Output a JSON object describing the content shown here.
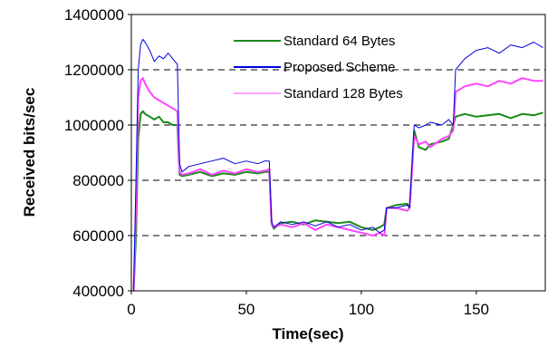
{
  "chart_data": {
    "type": "line",
    "title": "",
    "xlabel": "Time(sec)",
    "ylabel": "Received bits/sec",
    "xlim": [
      0,
      180
    ],
    "ylim": [
      400000,
      1400000
    ],
    "x_ticks": [
      "0",
      "50",
      "100",
      "150"
    ],
    "y_ticks": [
      "400000",
      "600000",
      "800000",
      "1000000",
      "1200000",
      "1400000"
    ],
    "grid": "horizontal dashed",
    "legend_position": "top-right",
    "series": [
      {
        "name": "Standard 64 Bytes",
        "color": "#1a8a1a",
        "x": [
          1,
          2,
          3,
          4,
          5,
          6,
          8,
          10,
          12,
          14,
          16,
          18,
          20,
          21,
          22,
          25,
          30,
          35,
          40,
          45,
          50,
          55,
          58,
          60,
          61,
          62,
          65,
          70,
          75,
          80,
          85,
          90,
          95,
          100,
          105,
          108,
          110,
          111,
          115,
          120,
          121,
          123,
          125,
          128,
          130,
          135,
          138,
          140,
          141,
          145,
          150,
          155,
          160,
          165,
          170,
          175,
          179
        ],
        "y": [
          400000,
          600000,
          950000,
          1040000,
          1050000,
          1040000,
          1030000,
          1020000,
          1030000,
          1010000,
          1010000,
          1000000,
          1000000,
          820000,
          815000,
          820000,
          830000,
          815000,
          825000,
          820000,
          830000,
          825000,
          830000,
          830000,
          640000,
          625000,
          645000,
          650000,
          640000,
          655000,
          650000,
          645000,
          650000,
          630000,
          620000,
          630000,
          640000,
          700000,
          710000,
          715000,
          700000,
          980000,
          920000,
          910000,
          930000,
          940000,
          950000,
          1000000,
          1030000,
          1040000,
          1030000,
          1035000,
          1040000,
          1025000,
          1040000,
          1035000,
          1045000
        ]
      },
      {
        "name": "Proposed Scheme",
        "color": "#0000dd",
        "x": [
          1,
          2,
          3,
          4,
          5,
          6,
          8,
          10,
          12,
          14,
          16,
          18,
          20,
          21,
          22,
          25,
          30,
          35,
          40,
          45,
          50,
          55,
          58,
          60,
          61,
          62,
          65,
          70,
          75,
          80,
          85,
          90,
          95,
          100,
          105,
          108,
          110,
          111,
          115,
          120,
          121,
          123,
          125,
          128,
          130,
          135,
          138,
          140,
          141,
          145,
          150,
          155,
          160,
          165,
          170,
          175,
          179
        ],
        "y": [
          400000,
          800000,
          1200000,
          1290000,
          1310000,
          1300000,
          1270000,
          1230000,
          1250000,
          1240000,
          1260000,
          1240000,
          1220000,
          860000,
          830000,
          850000,
          860000,
          870000,
          880000,
          860000,
          870000,
          860000,
          870000,
          870000,
          650000,
          630000,
          650000,
          640000,
          650000,
          635000,
          650000,
          630000,
          640000,
          620000,
          630000,
          610000,
          620000,
          700000,
          700000,
          710000,
          700000,
          1000000,
          990000,
          1000000,
          1010000,
          1000000,
          1020000,
          1000000,
          1200000,
          1240000,
          1270000,
          1280000,
          1260000,
          1290000,
          1280000,
          1300000,
          1280000
        ]
      },
      {
        "name": "Standard 128 Bytes",
        "color": "#ff44ff",
        "x": [
          1,
          2,
          3,
          4,
          5,
          6,
          8,
          10,
          12,
          14,
          16,
          18,
          20,
          21,
          22,
          25,
          30,
          35,
          40,
          45,
          50,
          55,
          58,
          60,
          61,
          62,
          65,
          70,
          75,
          80,
          85,
          90,
          95,
          100,
          105,
          108,
          110,
          111,
          115,
          120,
          121,
          123,
          125,
          128,
          130,
          135,
          138,
          140,
          141,
          145,
          150,
          155,
          160,
          165,
          170,
          175,
          179
        ],
        "y": [
          400000,
          700000,
          1100000,
          1160000,
          1170000,
          1150000,
          1120000,
          1100000,
          1090000,
          1080000,
          1070000,
          1060000,
          1050000,
          830000,
          820000,
          825000,
          840000,
          820000,
          835000,
          825000,
          840000,
          830000,
          835000,
          840000,
          640000,
          630000,
          640000,
          630000,
          645000,
          620000,
          640000,
          630000,
          620000,
          610000,
          600000,
          610000,
          600000,
          700000,
          700000,
          690000,
          700000,
          960000,
          930000,
          940000,
          920000,
          950000,
          960000,
          980000,
          1120000,
          1140000,
          1150000,
          1140000,
          1160000,
          1150000,
          1170000,
          1160000,
          1160000
        ]
      }
    ]
  }
}
